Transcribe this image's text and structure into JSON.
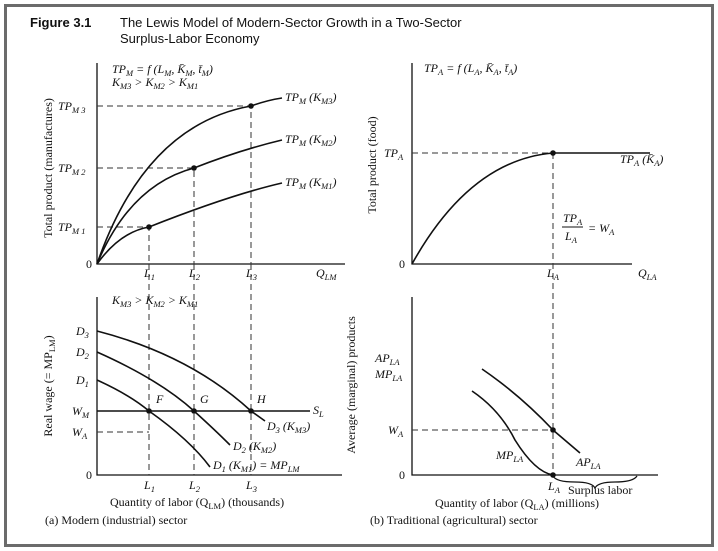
{
  "figure_number": "Figure 3.1",
  "title_line1": "The Lewis Model of Modern-Sector Growth in a Two-Sector",
  "title_line2": "Surplus-Labor Economy",
  "panel_a": {
    "caption": "(a) Modern (industrial) sector",
    "top": {
      "ylabel": "Total product (manufactures)",
      "formula": [
        [
          "TP",
          ""
        ],
        [
          "M",
          "sub"
        ],
        [
          " = f (L",
          ""
        ],
        [
          "M",
          "sub"
        ],
        [
          ", K̄",
          ""
        ],
        [
          "M",
          "sub"
        ],
        [
          ", t̄",
          ""
        ],
        [
          "M",
          "sub"
        ],
        [
          ")",
          ""
        ]
      ],
      "capital_order": [
        [
          "K",
          ""
        ],
        [
          "M3",
          "sub"
        ],
        [
          " > K",
          ""
        ],
        [
          "M2",
          "sub"
        ],
        [
          " > K",
          ""
        ],
        [
          "M1",
          "sub"
        ]
      ],
      "origin": "0",
      "y_ticks": [
        [
          [
            "TP",
            ""
          ],
          [
            "M 3",
            "sub"
          ]
        ],
        [
          [
            "TP",
            ""
          ],
          [
            "M 2",
            "sub"
          ]
        ],
        [
          [
            "TP",
            ""
          ],
          [
            "M 1",
            "sub"
          ]
        ]
      ],
      "x_ticks": [
        [
          [
            "L",
            ""
          ],
          [
            "1",
            "sub"
          ]
        ],
        [
          [
            "L",
            ""
          ],
          [
            "2",
            "sub"
          ]
        ],
        [
          [
            "L",
            ""
          ],
          [
            "3",
            "sub"
          ]
        ]
      ],
      "x_axis": [
        [
          "Q",
          ""
        ],
        [
          "LM",
          "sub"
        ]
      ],
      "curves": [
        [
          [
            "TP",
            ""
          ],
          [
            "M",
            "sub"
          ],
          [
            " (K",
            ""
          ],
          [
            "M3",
            "sub"
          ],
          [
            ")",
            ""
          ]
        ],
        [
          [
            "TP",
            ""
          ],
          [
            "M",
            "sub"
          ],
          [
            " (K",
            ""
          ],
          [
            "M2",
            "sub"
          ],
          [
            ")",
            ""
          ]
        ],
        [
          [
            "TP",
            ""
          ],
          [
            "M",
            "sub"
          ],
          [
            " (K",
            ""
          ],
          [
            "M1",
            "sub"
          ],
          [
            ")",
            ""
          ]
        ]
      ]
    },
    "bottom": {
      "ylabel": [
        [
          "Real wage (= MP",
          ""
        ],
        [
          "LM",
          "sub"
        ],
        [
          ")",
          ""
        ]
      ],
      "capital_order": [
        [
          "K",
          ""
        ],
        [
          "M3",
          "sub"
        ],
        [
          " > K",
          ""
        ],
        [
          "M2",
          "sub"
        ],
        [
          " > K",
          ""
        ],
        [
          "M1",
          "sub"
        ]
      ],
      "origin": "0",
      "demand_starts": [
        [
          [
            "D",
            ""
          ],
          [
            "3",
            "sub"
          ]
        ],
        [
          [
            "D",
            ""
          ],
          [
            "2",
            "sub"
          ]
        ],
        [
          [
            "D",
            ""
          ],
          [
            "1",
            "sub"
          ]
        ]
      ],
      "wage_m": [
        [
          "W",
          ""
        ],
        [
          "M",
          "sub"
        ]
      ],
      "wage_a": [
        [
          "W",
          ""
        ],
        [
          "A",
          "sub"
        ]
      ],
      "supply": [
        [
          "S",
          ""
        ],
        [
          "L",
          "sub"
        ]
      ],
      "points": [
        "F",
        "G",
        "H"
      ],
      "curves": [
        [
          [
            "D",
            ""
          ],
          [
            "3",
            "sub"
          ],
          [
            " (K",
            ""
          ],
          [
            "M3",
            "sub"
          ],
          [
            ")",
            ""
          ]
        ],
        [
          [
            "D",
            ""
          ],
          [
            "2",
            "sub"
          ],
          [
            " (K",
            ""
          ],
          [
            "M2",
            "sub"
          ],
          [
            ")",
            ""
          ]
        ],
        [
          [
            "D",
            ""
          ],
          [
            "1",
            "sub"
          ],
          [
            " (K",
            ""
          ],
          [
            "M1",
            "sub"
          ],
          [
            ") = MP",
            ""
          ],
          [
            "LM",
            "sub"
          ]
        ]
      ],
      "x_ticks": [
        [
          [
            "L",
            ""
          ],
          [
            "1",
            "sub"
          ]
        ],
        [
          [
            "L",
            ""
          ],
          [
            "2",
            "sub"
          ]
        ],
        [
          [
            "L",
            ""
          ],
          [
            "3",
            "sub"
          ]
        ]
      ],
      "xlabel": [
        [
          "Quantity of labor (",
          ""
        ],
        [
          "Q",
          ""
        ],
        [
          "LM",
          "sub"
        ],
        [
          ") (thousands)",
          ""
        ]
      ]
    }
  },
  "panel_b": {
    "caption": "(b) Traditional (agricultural) sector",
    "top": {
      "ylabel": "Total product (food)",
      "formula": [
        [
          "TP",
          ""
        ],
        [
          "A",
          "sub"
        ],
        [
          " = f (L",
          ""
        ],
        [
          "A",
          "sub"
        ],
        [
          ", K̄",
          ""
        ],
        [
          "A",
          "sub"
        ],
        [
          ", t̄",
          ""
        ],
        [
          "A",
          "sub"
        ],
        [
          ")",
          ""
        ]
      ],
      "origin": "0",
      "y_tick": [
        [
          "TP",
          ""
        ],
        [
          "A",
          "sub"
        ]
      ],
      "x_tick": [
        [
          "L",
          ""
        ],
        [
          "A",
          "sub"
        ]
      ],
      "x_axis": [
        [
          "Q",
          ""
        ],
        [
          "LA",
          "sub"
        ]
      ],
      "curve": [
        [
          "TP",
          ""
        ],
        [
          "A",
          "sub"
        ],
        [
          " (K̄",
          ""
        ],
        [
          "A",
          "sub"
        ],
        [
          ")",
          ""
        ]
      ],
      "ratio_num": [
        [
          "TP",
          ""
        ],
        [
          "A",
          "sub"
        ]
      ],
      "ratio_den": [
        [
          "L",
          ""
        ],
        [
          "A",
          "sub"
        ]
      ],
      "ratio_eq": [
        [
          "= W",
          ""
        ],
        [
          "A",
          "sub"
        ]
      ]
    },
    "bottom": {
      "ylabel": "Average (marginal) products",
      "y_label_ap": [
        [
          "AP",
          ""
        ],
        [
          "LA",
          "sub"
        ]
      ],
      "y_label_mp": [
        [
          "MP",
          ""
        ],
        [
          "LA",
          "sub"
        ]
      ],
      "wage_a": [
        [
          "W",
          ""
        ],
        [
          "A",
          "sub"
        ]
      ],
      "origin": "0",
      "x_tick": [
        [
          "L",
          ""
        ],
        [
          "A",
          "sub"
        ]
      ],
      "mp_curve": [
        [
          "MP",
          ""
        ],
        [
          "LA",
          "sub"
        ]
      ],
      "ap_curve": [
        [
          "AP",
          ""
        ],
        [
          "LA",
          "sub"
        ]
      ],
      "surplus": "Surplus labor",
      "xlabel": [
        [
          "Quantity of labor (",
          ""
        ],
        [
          "Q",
          ""
        ],
        [
          "LA",
          "sub"
        ],
        [
          ") (millions)",
          ""
        ]
      ]
    }
  }
}
